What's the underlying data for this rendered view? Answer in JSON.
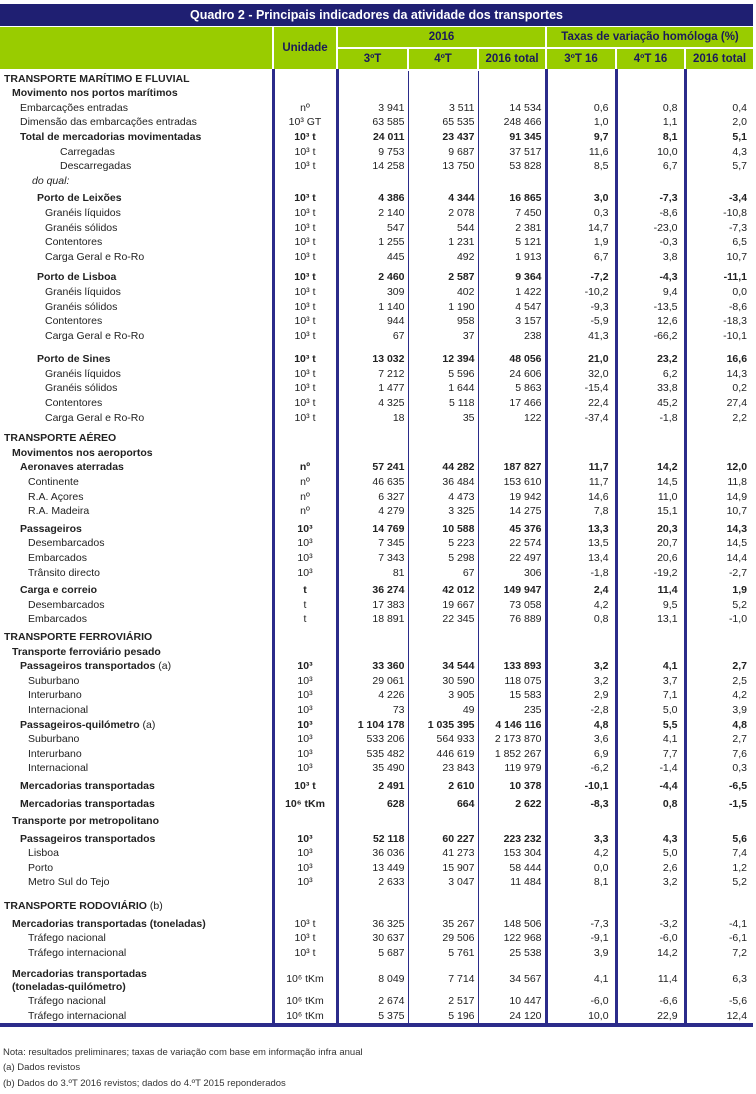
{
  "title": "Quadro 2 - Principais indicadores da atividade dos transportes",
  "header": {
    "unit": "Unidade",
    "year": "2016",
    "rates": "Taxas de variação homóloga (%)",
    "cols": [
      "3ºT",
      "4ºT",
      "2016 total",
      "3ºT 16",
      "4ºT 16",
      "2016 total"
    ]
  },
  "colors": {
    "title_bg": "#1f1f72",
    "header_bg": "#99cc00",
    "rule": "#2b2b8a"
  },
  "rows": [
    {
      "kind": "section",
      "label": "TRANSPORTE MARÍTIMO E FLUVIAL",
      "unit": "",
      "v": [
        "",
        "",
        "",
        "",
        "",
        ""
      ]
    },
    {
      "kind": "group",
      "label": "Movimento nos portos marítimos",
      "unit": "",
      "v": [
        "",
        "",
        "",
        "",
        "",
        ""
      ]
    },
    {
      "kind": "item",
      "label": "Embarcações entradas",
      "unit": "nº",
      "v": [
        "3 941",
        "3 511",
        "14 534",
        "0,6",
        "0,8",
        "0,4"
      ]
    },
    {
      "kind": "item",
      "label": "Dimensão das embarcações entradas",
      "unit": "10³ GT",
      "v": [
        "63 585",
        "65 535",
        "248 466",
        "1,0",
        "1,1",
        "2,0"
      ]
    },
    {
      "kind": "total",
      "label": "Total de mercadorias movimentadas",
      "unit": "10³ t",
      "v": [
        "24 011",
        "23 437",
        "91 345",
        "9,7",
        "8,1",
        "5,1"
      ]
    },
    {
      "kind": "sub",
      "label": "Carregadas",
      "unit": "10³ t",
      "v": [
        "9 753",
        "9 687",
        "37 517",
        "11,6",
        "10,0",
        "4,3"
      ]
    },
    {
      "kind": "sub",
      "label": "Descarregadas",
      "unit": "10³ t",
      "v": [
        "14 258",
        "13 750",
        "53 828",
        "8,5",
        "6,7",
        "5,7"
      ]
    },
    {
      "kind": "doqual",
      "label": "do qual:",
      "unit": "",
      "v": [
        "",
        "",
        "",
        "",
        "",
        ""
      ]
    },
    {
      "kind": "port",
      "label": "Porto de Leixões",
      "unit": "10³ t",
      "v": [
        "4 386",
        "4 344",
        "16 865",
        "3,0",
        "-7,3",
        "-3,4"
      ]
    },
    {
      "kind": "portitem",
      "label": "Granéis líquidos",
      "unit": "10³ t",
      "v": [
        "2 140",
        "2 078",
        "7 450",
        "0,3",
        "-8,6",
        "-10,8"
      ]
    },
    {
      "kind": "portitem",
      "label": "Granéis sólidos",
      "unit": "10³ t",
      "v": [
        "547",
        "544",
        "2 381",
        "14,7",
        "-23,0",
        "-7,3"
      ]
    },
    {
      "kind": "portitem",
      "label": "Contentores",
      "unit": "10³ t",
      "v": [
        "1 255",
        "1 231",
        "5 121",
        "1,9",
        "-0,3",
        "6,5"
      ]
    },
    {
      "kind": "portitem",
      "label": "Carga Geral e Ro-Ro",
      "unit": "10³ t",
      "v": [
        "445",
        "492",
        "1 913",
        "6,7",
        "3,8",
        "10,7"
      ]
    },
    {
      "kind": "port",
      "label": "Porto de Lisboa",
      "unit": "10³ t",
      "v": [
        "2 460",
        "2 587",
        "9 364",
        "-7,2",
        "-4,3",
        "-11,1"
      ]
    },
    {
      "kind": "portitem",
      "label": "Granéis líquidos",
      "unit": "10³ t",
      "v": [
        "309",
        "402",
        "1 422",
        "-10,2",
        "9,4",
        "0,0"
      ]
    },
    {
      "kind": "portitem",
      "label": "Granéis sólidos",
      "unit": "10³ t",
      "v": [
        "1 140",
        "1 190",
        "4 547",
        "-9,3",
        "-13,5",
        "-8,6"
      ]
    },
    {
      "kind": "portitem",
      "label": "Contentores",
      "unit": "10³ t",
      "v": [
        "944",
        "958",
        "3 157",
        "-5,9",
        "12,6",
        "-18,3"
      ]
    },
    {
      "kind": "portitem",
      "label": "Carga Geral e Ro-Ro",
      "unit": "10³ t",
      "v": [
        "67",
        "37",
        "238",
        "41,3",
        "-66,2",
        "-10,1"
      ]
    },
    {
      "kind": "port",
      "label": "Porto de Sines",
      "unit": "10³ t",
      "v": [
        "13 032",
        "12 394",
        "48 056",
        "21,0",
        "23,2",
        "16,6"
      ]
    },
    {
      "kind": "portitem",
      "label": "Granéis líquidos",
      "unit": "10³ t",
      "v": [
        "7 212",
        "5 596",
        "24 606",
        "32,0",
        "6,2",
        "14,3"
      ]
    },
    {
      "kind": "portitem",
      "label": "Granéis sólidos",
      "unit": "10³ t",
      "v": [
        "1 477",
        "1 644",
        "5 863",
        "-15,4",
        "33,8",
        "0,2"
      ]
    },
    {
      "kind": "portitem",
      "label": "Contentores",
      "unit": "10³ t",
      "v": [
        "4 325",
        "5 118",
        "17 466",
        "22,4",
        "45,2",
        "27,4"
      ]
    },
    {
      "kind": "portitem",
      "label": "Carga Geral e Ro-Ro",
      "unit": "10³ t",
      "v": [
        "18",
        "35",
        "122",
        "-37,4",
        "-1,8",
        "2,2"
      ]
    },
    {
      "kind": "section",
      "label": "TRANSPORTE AÉREO",
      "unit": "",
      "v": [
        "",
        "",
        "",
        "",
        "",
        ""
      ]
    },
    {
      "kind": "group",
      "label": "Movimentos nos aeroportos",
      "unit": "",
      "v": [
        "",
        "",
        "",
        "",
        "",
        ""
      ]
    },
    {
      "kind": "bold",
      "label": "Aeronaves aterradas",
      "unit": "nº",
      "v": [
        "57 241",
        "44 282",
        "187 827",
        "11,7",
        "14,2",
        "12,0"
      ]
    },
    {
      "kind": "aitem",
      "label": "Continente",
      "unit": "nº",
      "v": [
        "46 635",
        "36 484",
        "153 610",
        "11,7",
        "14,5",
        "11,8"
      ]
    },
    {
      "kind": "aitem",
      "label": "R.A. Açores",
      "unit": "nº",
      "v": [
        "6 327",
        "4 473",
        "19 942",
        "14,6",
        "11,0",
        "14,9"
      ]
    },
    {
      "kind": "aitem",
      "label": "R.A. Madeira",
      "unit": "nº",
      "v": [
        "4 279",
        "3 325",
        "14 275",
        "7,8",
        "15,1",
        "10,7"
      ]
    },
    {
      "kind": "bold",
      "label": "Passageiros",
      "unit": "10³",
      "v": [
        "14 769",
        "10 588",
        "45 376",
        "13,3",
        "20,3",
        "14,3"
      ]
    },
    {
      "kind": "aitem",
      "label": "Desembarcados",
      "unit": "10³",
      "v": [
        "7 345",
        "5 223",
        "22 574",
        "13,5",
        "20,7",
        "14,5"
      ]
    },
    {
      "kind": "aitem",
      "label": "Embarcados",
      "unit": "10³",
      "v": [
        "7 343",
        "5 298",
        "22 497",
        "13,4",
        "20,6",
        "14,4"
      ]
    },
    {
      "kind": "aitem",
      "label": "Trânsito directo",
      "unit": "10³",
      "v": [
        "81",
        "67",
        "306",
        "-1,8",
        "-19,2",
        "-2,7"
      ]
    },
    {
      "kind": "bold",
      "label": "Carga e correio",
      "unit": "t",
      "v": [
        "36 274",
        "42 012",
        "149 947",
        "2,4",
        "11,4",
        "1,9"
      ]
    },
    {
      "kind": "aitem",
      "label": "Desembarcados",
      "unit": "t",
      "v": [
        "17 383",
        "19 667",
        "73 058",
        "4,2",
        "9,5",
        "5,2"
      ]
    },
    {
      "kind": "aitem",
      "label": "Embarcados",
      "unit": "t",
      "v": [
        "18 891",
        "22 345",
        "76 889",
        "0,8",
        "13,1",
        "-1,0"
      ]
    },
    {
      "kind": "section",
      "label": "TRANSPORTE FERROVIÁRIO",
      "unit": "",
      "v": [
        "",
        "",
        "",
        "",
        "",
        ""
      ]
    },
    {
      "kind": "group",
      "label": "Transporte ferroviário pesado",
      "unit": "",
      "v": [
        "",
        "",
        "",
        "",
        "",
        ""
      ]
    },
    {
      "kind": "bold",
      "label": "Passageiros transportados",
      "note": " (a)",
      "unit": "10³",
      "v": [
        "33 360",
        "34 544",
        "133 893",
        "3,2",
        "4,1",
        "2,7"
      ]
    },
    {
      "kind": "aitem",
      "label": "Suburbano",
      "unit": "10³",
      "v": [
        "29 061",
        "30 590",
        "118 075",
        "3,2",
        "3,7",
        "2,5"
      ]
    },
    {
      "kind": "aitem",
      "label": "Interurbano",
      "unit": "10³",
      "v": [
        "4 226",
        "3 905",
        "15 583",
        "2,9",
        "7,1",
        "4,2"
      ]
    },
    {
      "kind": "aitem",
      "label": "Internacional",
      "unit": "10³",
      "v": [
        "73",
        "49",
        "235",
        "-2,8",
        "5,0",
        "3,9"
      ]
    },
    {
      "kind": "bold",
      "label": "Passageiros-quilómetro",
      "note": " (a)",
      "unit": "10³",
      "v": [
        "1 104 178",
        "1 035 395",
        "4 146 116",
        "4,8",
        "5,5",
        "4,8"
      ]
    },
    {
      "kind": "aitem",
      "label": "Suburbano",
      "unit": "10³",
      "v": [
        "533 206",
        "564 933",
        "2 173 870",
        "3,6",
        "4,1",
        "2,7"
      ]
    },
    {
      "kind": "aitem",
      "label": "Interurbano",
      "unit": "10³",
      "v": [
        "535 482",
        "446 619",
        "1 852 267",
        "6,9",
        "7,7",
        "7,6"
      ]
    },
    {
      "kind": "aitem",
      "label": "Internacional",
      "unit": "10³",
      "v": [
        "35 490",
        "23 843",
        "119 979",
        "-6,2",
        "-1,4",
        "0,3"
      ]
    },
    {
      "kind": "bold",
      "label": "Mercadorias transportadas",
      "unit": "10³ t",
      "v": [
        "2 491",
        "2 610",
        "10 378",
        "-10,1",
        "-4,4",
        "-6,5"
      ]
    },
    {
      "kind": "bold",
      "label": "Mercadorias transportadas",
      "unit": "10⁶ tKm",
      "v": [
        "628",
        "664",
        "2 622",
        "-8,3",
        "0,8",
        "-1,5"
      ]
    },
    {
      "kind": "group",
      "label": "Transporte por metropolitano",
      "unit": "",
      "v": [
        "",
        "",
        "",
        "",
        "",
        ""
      ]
    },
    {
      "kind": "bold",
      "label": "Passageiros transportados",
      "unit": "10³",
      "v": [
        "52 118",
        "60 227",
        "223 232",
        "3,3",
        "4,3",
        "5,6"
      ]
    },
    {
      "kind": "aitem",
      "label": "Lisboa",
      "unit": "10³",
      "v": [
        "36 036",
        "41 273",
        "153 304",
        "4,2",
        "5,0",
        "7,4"
      ]
    },
    {
      "kind": "aitem",
      "label": "Porto",
      "unit": "10³",
      "v": [
        "13 449",
        "15 907",
        "58 444",
        "0,0",
        "2,6",
        "1,2"
      ]
    },
    {
      "kind": "aitem",
      "label": "Metro Sul do Tejo",
      "unit": "10³",
      "v": [
        "2 633",
        "3 047",
        "11 484",
        "8,1",
        "3,2",
        "5,2"
      ]
    },
    {
      "kind": "section",
      "label": "TRANSPORTE RODOVIÁRIO",
      "note": " (b)",
      "unit": "",
      "v": [
        "",
        "",
        "",
        "",
        "",
        ""
      ]
    },
    {
      "kind": "group",
      "label": "Mercadorias transportadas (toneladas)",
      "unit": "10³ t",
      "v": [
        "36 325",
        "35 267",
        "148 506",
        "-7,3",
        "-3,2",
        "-4,1"
      ]
    },
    {
      "kind": "aitem",
      "label": "Tráfego nacional",
      "unit": "10³ t",
      "v": [
        "30 637",
        "29 506",
        "122 968",
        "-9,1",
        "-6,0",
        "-6,1"
      ]
    },
    {
      "kind": "aitem",
      "label": "Tráfego internacional",
      "unit": "10³ t",
      "v": [
        "5 687",
        "5 761",
        "25 538",
        "3,9",
        "14,2",
        "7,2"
      ]
    },
    {
      "kind": "group",
      "label": "Mercadorias transportadas",
      "label2": "(toneladas-quilómetro)",
      "unit": "10⁶ tKm",
      "v": [
        "8 049",
        "7 714",
        "34 567",
        "4,1",
        "11,4",
        "6,3"
      ]
    },
    {
      "kind": "aitem",
      "label": "Tráfego nacional",
      "unit": "10⁶ tKm",
      "v": [
        "2 674",
        "2 517",
        "10 447",
        "-6,0",
        "-6,6",
        "-5,6"
      ]
    },
    {
      "kind": "aitem",
      "label": "Tráfego internacional",
      "unit": "10⁶ tKm",
      "v": [
        "5 375",
        "5 196",
        "24 120",
        "10,0",
        "22,9",
        "12,4"
      ]
    }
  ],
  "footnotes": [
    "Nota: resultados preliminares; taxas de variação com base em informação infra anual",
    "(a) Dados revistos",
    "(b) Dados do 3.ºT 2016 revistos; dados do 4.ºT 2015 reponderados"
  ]
}
